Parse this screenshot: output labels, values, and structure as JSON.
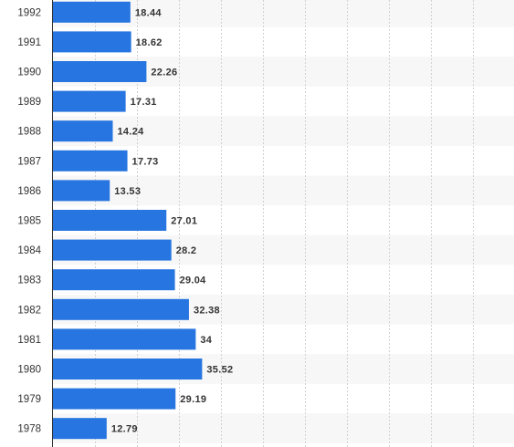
{
  "chart_data": {
    "type": "bar",
    "orientation": "horizontal",
    "categories": [
      "1992",
      "1991",
      "1990",
      "1989",
      "1988",
      "1987",
      "1986",
      "1985",
      "1984",
      "1983",
      "1982",
      "1981",
      "1980",
      "1979",
      "1978"
    ],
    "values": [
      18.44,
      18.62,
      22.26,
      17.31,
      14.24,
      17.73,
      13.53,
      27.01,
      28.2,
      29.04,
      32.38,
      34,
      35.52,
      29.19,
      12.79
    ],
    "data_labels": [
      "18.44",
      "18.62",
      "22.26",
      "17.31",
      "14.24",
      "17.73",
      "13.53",
      "27.01",
      "28.2",
      "29.04",
      "32.38",
      "34",
      "35.52",
      "29.19",
      "12.79"
    ],
    "title": "",
    "xlabel": "",
    "ylabel": "",
    "xlim": [
      0,
      110
    ],
    "grid": "vertical dashed",
    "bar_color": "#2775e0",
    "stripe_color": "#f7f7f7"
  }
}
